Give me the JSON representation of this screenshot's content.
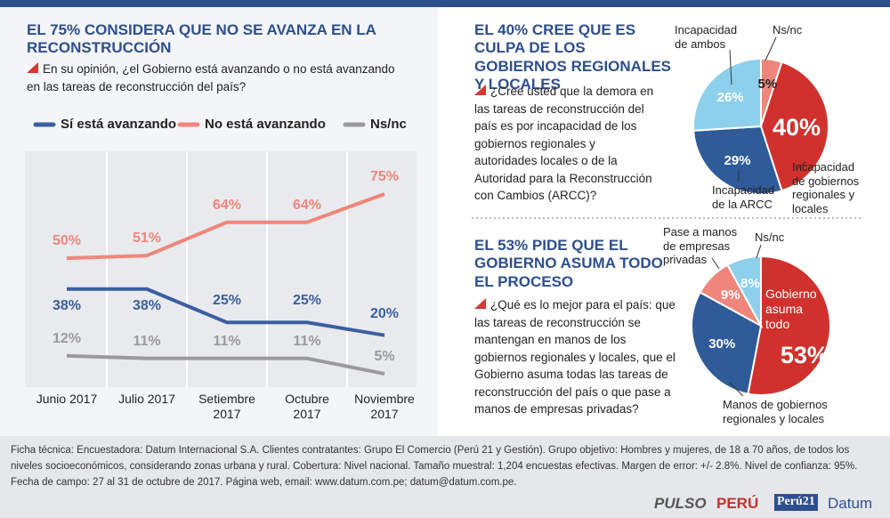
{
  "chart_data": [
    {
      "type": "line",
      "title": "EL 75% CONSIDERA QUE NO SE AVANZA EN LA RECONSTRUCCIÓN",
      "subtitle": "En su opinión, ¿el Gobierno está avanzando o no está avanzando en las tareas de reconstrucción del país?",
      "categories": [
        "Junio 2017",
        "Julio 2017",
        "Setiembre 2017",
        "Octubre 2017",
        "Noviembre 2017"
      ],
      "series": [
        {
          "name": "Sí está avanzando",
          "color": "#3a5fa0",
          "values": [
            38,
            38,
            25,
            25,
            20
          ],
          "value_labels": [
            "38%",
            "38%",
            "25%",
            "25%",
            "20%"
          ]
        },
        {
          "name": "No está avanzando",
          "color": "#f0867b",
          "values": [
            50,
            51,
            64,
            64,
            75
          ],
          "value_labels": [
            "50%",
            "51%",
            "64%",
            "64%",
            "75%"
          ]
        },
        {
          "name": "Ns/nc",
          "color": "#9a9a9a",
          "values": [
            12,
            11,
            11,
            11,
            5
          ],
          "value_labels": [
            "12%",
            "11%",
            "11%",
            "11%",
            "5%"
          ]
        }
      ]
    },
    {
      "type": "pie",
      "title": "EL 40% CREE QUE ES CULPA DE LOS GOBIERNOS REGIONALES Y LOCALES",
      "subtitle": "¿Cree usted que la demora en las tareas de reconstrucción del país es por incapacidad de los gobiernos regionales y autoridades locales o de la Autoridad para la Reconstrucción con Cambios (ARCC)?",
      "categories": [
        "Ns/nc",
        "Incapacidad de gobiernos regionales y locales",
        "Incapacidad de la ARCC",
        "Incapacidad de ambos"
      ],
      "values": [
        5,
        40,
        29,
        26
      ],
      "value_labels": [
        "5%",
        "40%",
        "29%",
        "26%"
      ],
      "colors": [
        "#f0867b",
        "#d0312d",
        "#2f5b99",
        "#8dd0ec"
      ]
    },
    {
      "type": "pie",
      "title": "EL 53% PIDE QUE EL GOBIERNO ASUMA TODO EL PROCESO",
      "subtitle": "¿Qué es lo mejor para el país: que las tareas de reconstrucción se mantengan en manos de los gobiernos regionales y locales, que el Gobierno asuma todas las tareas de reconstrucción del país o que pase a manos de empresas privadas?",
      "categories": [
        "Gobierno asuma todo",
        "Manos de gobiernos regionales y locales",
        "Pase a manos de empresas privadas",
        "Ns/nc"
      ],
      "values": [
        53,
        30,
        9,
        8
      ],
      "value_labels": [
        "53%",
        "30%",
        "9%",
        "8%"
      ],
      "colors": [
        "#d0312d",
        "#2f5b99",
        "#f0867b",
        "#8dd0ec"
      ]
    }
  ],
  "footer": {
    "text": "Ficha técnica: Encuestadora: Datum Internacional S.A. Clientes contratantes: Grupo El Comercio (Perú 21 y Gestión). Grupo objetivo: Hombres y mujeres, de 18 a 70 años, de todos los niveles socioeconómicos, considerando zonas urbana y rural. Cobertura: Nivel nacional. Tamaño muestral: 1,204 encuestas efectivas. Margen de error: +/- 2.8%. Nivel de confianza: 95%. Fecha de campo: 27 al 31 de octubre de 2017. Página web, email: www.datum.com.pe; datum@datum.com.pe.",
    "logos": [
      "PULSO",
      "PERÚ",
      "Perú21",
      "Datum"
    ]
  }
}
